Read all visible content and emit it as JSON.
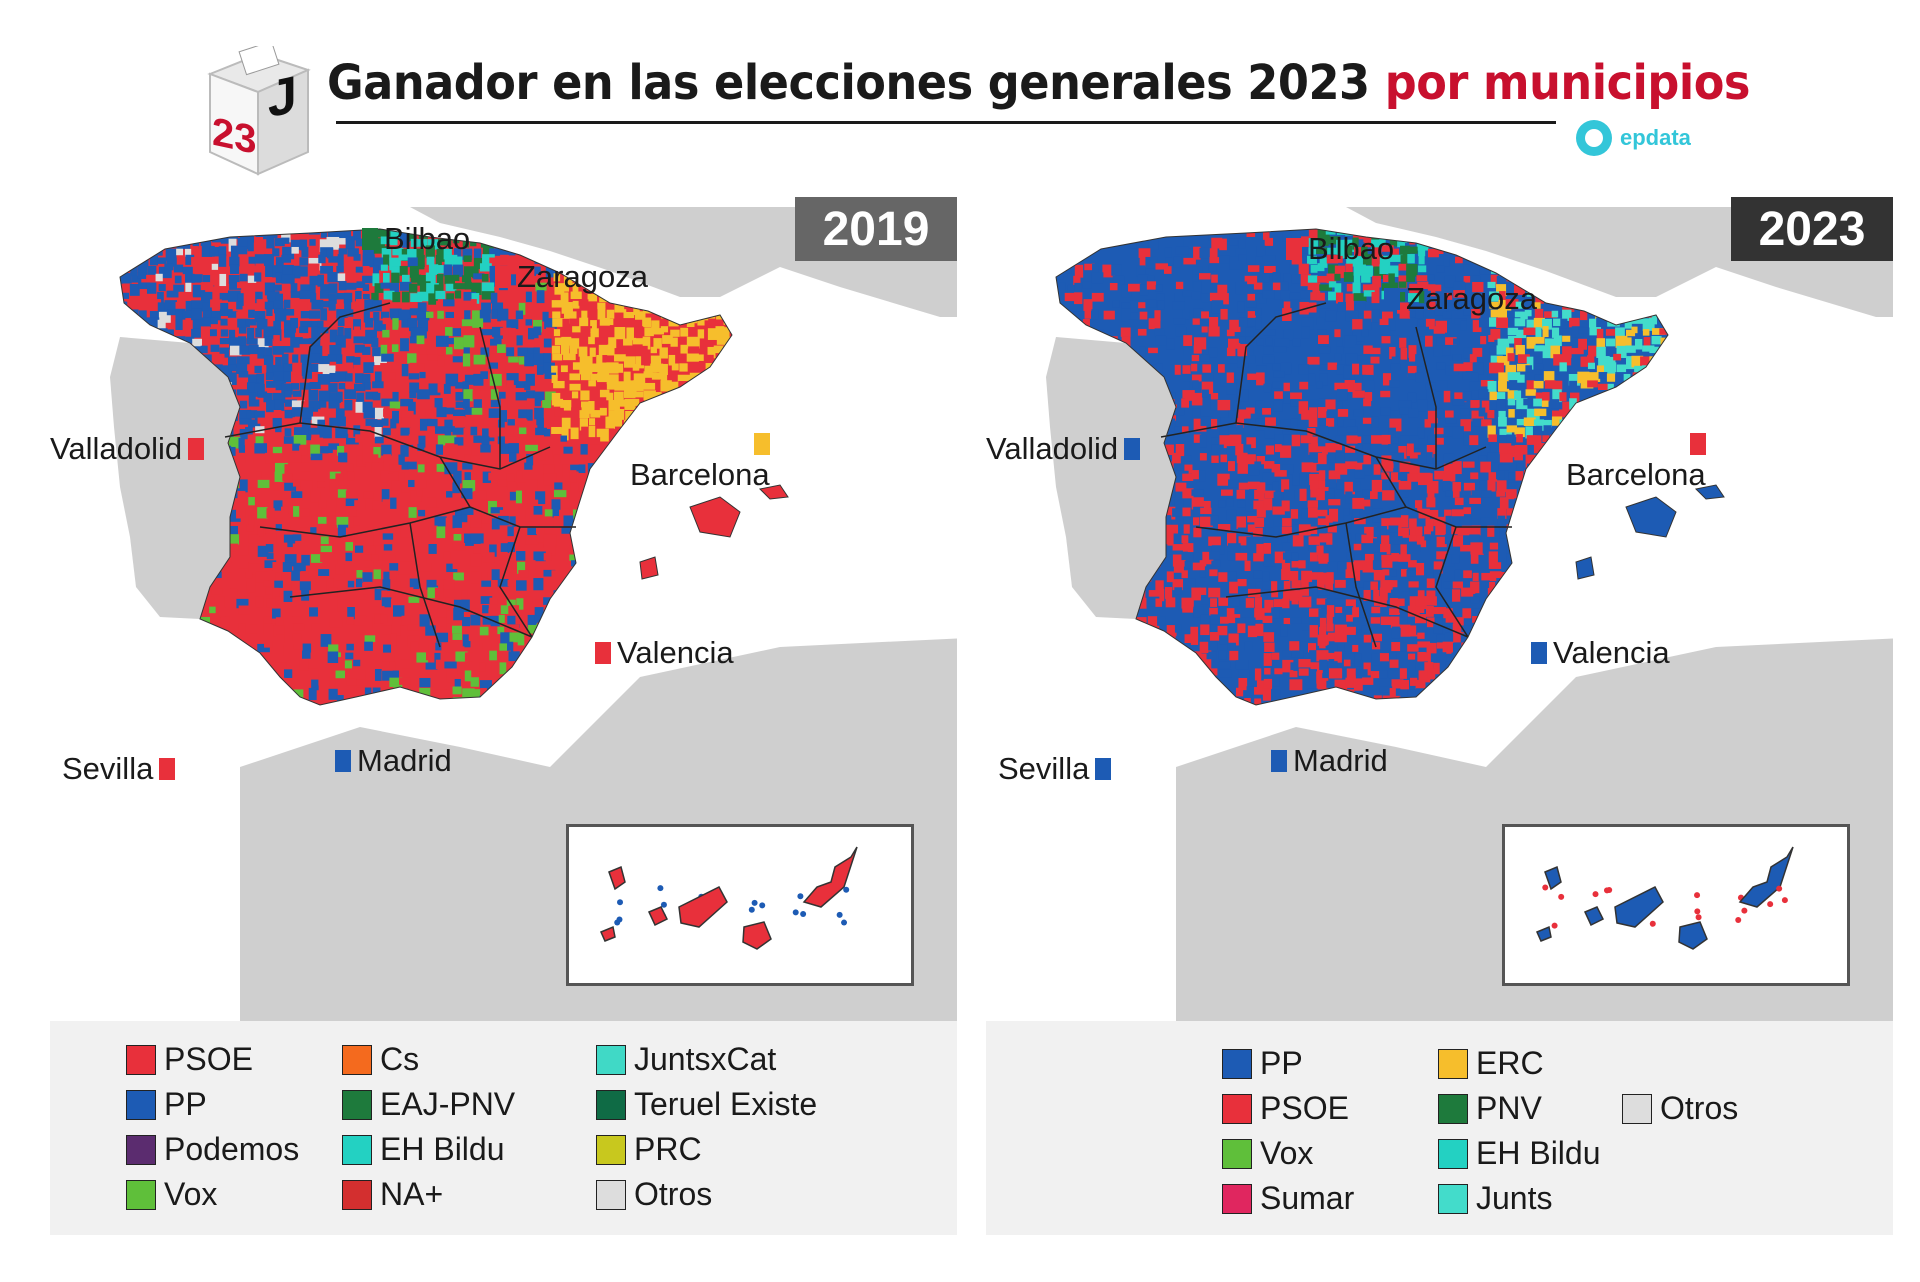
{
  "header": {
    "logo": {
      "number": "23",
      "letter": "J",
      "icon": "ballot-box-icon"
    },
    "title_main": "Ganador en las elecciones generales 2023",
    "title_highlight": "por municipios",
    "brand": "epdata",
    "brand_icon": "epdata-logo-icon"
  },
  "colors": {
    "PSOE": "#e8303b",
    "PP": "#1d5bb4",
    "Podemos": "#5b2c6f",
    "Vox": "#5fbf3a",
    "Cs": "#f46a1e",
    "EAJ-PNV": "#1e7a3c",
    "EH Bildu": "#23d1c2",
    "NA+": "#d32f2f",
    "JuntsxCat": "#40d9c6",
    "Teruel Existe": "#0f6b45",
    "PRC": "#c8c81e",
    "Otros": "#dddddd",
    "ERC": "#f6be2c",
    "Sumar": "#e0265f",
    "Junts": "#43dccb",
    "land": "#cfcfcf",
    "sea": "#ffffff"
  },
  "panels": [
    {
      "year": "2019",
      "cities": [
        {
          "name": "Bilbao",
          "party": "EAJ-PNV"
        },
        {
          "name": "Zaragoza",
          "party": "PSOE"
        },
        {
          "name": "Valladolid",
          "party": "PSOE"
        },
        {
          "name": "Barcelona",
          "party": "ERC"
        },
        {
          "name": "Valencia",
          "party": "PSOE"
        },
        {
          "name": "Sevilla",
          "party": "PSOE"
        },
        {
          "name": "Madrid",
          "party": "PP"
        }
      ],
      "legend": [
        {
          "label": "PSOE",
          "party": "PSOE"
        },
        {
          "label": "PP",
          "party": "PP"
        },
        {
          "label": "Podemos",
          "party": "Podemos"
        },
        {
          "label": "Vox",
          "party": "Vox"
        },
        {
          "label": "Cs",
          "party": "Cs"
        },
        {
          "label": "EAJ-PNV",
          "party": "EAJ-PNV"
        },
        {
          "label": "EH Bildu",
          "party": "EH Bildu"
        },
        {
          "label": "NA+",
          "party": "NA+"
        },
        {
          "label": "JuntsxCat",
          "party": "JuntsxCat"
        },
        {
          "label": "Teruel Existe",
          "party": "Teruel Existe"
        },
        {
          "label": "PRC",
          "party": "PRC"
        },
        {
          "label": "Otros",
          "party": "Otros"
        }
      ]
    },
    {
      "year": "2023",
      "cities": [
        {
          "name": "Bilbao",
          "party": "PSOE"
        },
        {
          "name": "Zaragoza",
          "party": "PP"
        },
        {
          "name": "Valladolid",
          "party": "PP"
        },
        {
          "name": "Barcelona",
          "party": "PSOE"
        },
        {
          "name": "Valencia",
          "party": "PP"
        },
        {
          "name": "Sevilla",
          "party": "PP"
        },
        {
          "name": "Madrid",
          "party": "PP"
        }
      ],
      "legend": [
        {
          "label": "PP",
          "party": "PP"
        },
        {
          "label": "PSOE",
          "party": "PSOE"
        },
        {
          "label": "Vox",
          "party": "Vox"
        },
        {
          "label": "Sumar",
          "party": "Sumar"
        },
        {
          "label": "ERC",
          "party": "ERC"
        },
        {
          "label": "PNV",
          "party": "EAJ-PNV"
        },
        {
          "label": "EH Bildu",
          "party": "EH Bildu"
        },
        {
          "label": "Junts",
          "party": "Junts"
        },
        {
          "label": "Otros",
          "party": "Otros"
        }
      ]
    }
  ]
}
